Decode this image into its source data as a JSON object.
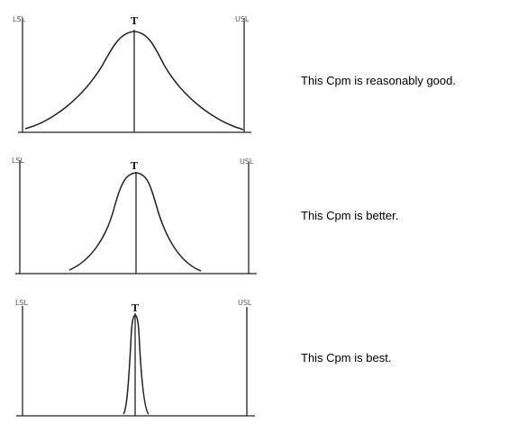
{
  "panels": [
    {
      "lsl_label": "LSL",
      "usl_label": "USL",
      "target_label": "T",
      "caption": "This Cpm is reasonably good."
    },
    {
      "lsl_label": "LSL",
      "usl_label": "USL",
      "target_label": "T",
      "caption": "This Cpm is better."
    },
    {
      "lsl_label": "LSL",
      "usl_label": "USL",
      "target_label": "T",
      "caption": "This Cpm is best."
    }
  ],
  "colors": {
    "line": "#222222",
    "label": "#555555"
  }
}
